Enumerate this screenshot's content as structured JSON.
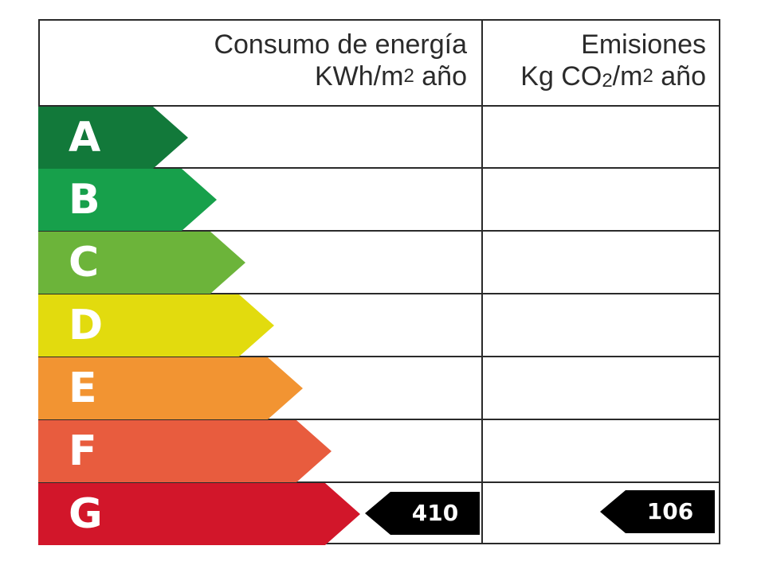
{
  "header": {
    "energy_line1": "Consumo de energía",
    "energy_line2_prefix": "KWh/m",
    "energy_line2_sup": "2",
    "energy_line2_suffix": " año",
    "emissions_line1": "Emisiones",
    "emissions_line2_prefix": "Kg CO",
    "emissions_line2_sub": "2",
    "emissions_line2_mid": "/m",
    "emissions_line2_sup": "2",
    "emissions_line2_suffix": " año"
  },
  "ratings": [
    {
      "letter": "A",
      "color": "#12793a"
    },
    {
      "letter": "B",
      "color": "#17a04b"
    },
    {
      "letter": "C",
      "color": "#6cb43a"
    },
    {
      "letter": "D",
      "color": "#e2db0e"
    },
    {
      "letter": "E",
      "color": "#f29432"
    },
    {
      "letter": "F",
      "color": "#e85c3e"
    },
    {
      "letter": "G",
      "color": "#d2162a"
    }
  ],
  "energy_value": "410",
  "emissions_value": "106",
  "selected_rating": "G",
  "tag_color": "#000000"
}
